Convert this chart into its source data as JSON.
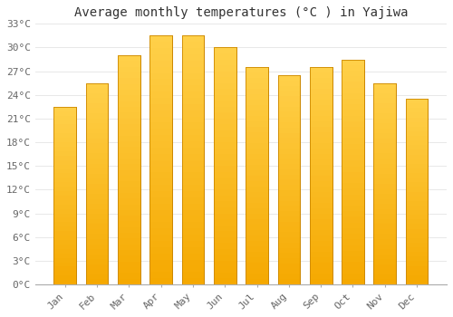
{
  "title": "Average monthly temperatures (°C ) in Yajiwa",
  "months": [
    "Jan",
    "Feb",
    "Mar",
    "Apr",
    "May",
    "Jun",
    "Jul",
    "Aug",
    "Sep",
    "Oct",
    "Nov",
    "Dec"
  ],
  "values": [
    22.5,
    25.5,
    29.0,
    31.5,
    31.5,
    30.0,
    27.5,
    26.5,
    27.5,
    28.5,
    25.5,
    23.5
  ],
  "bar_color_top": "#FFD04A",
  "bar_color_bottom": "#F5A800",
  "bar_edge_color": "#CC8800",
  "background_color": "#FFFFFF",
  "grid_color": "#E8E8E8",
  "ylim": [
    0,
    33
  ],
  "yticks": [
    0,
    3,
    6,
    9,
    12,
    15,
    18,
    21,
    24,
    27,
    30,
    33
  ],
  "ytick_labels": [
    "0°C",
    "3°C",
    "6°C",
    "9°C",
    "12°C",
    "15°C",
    "18°C",
    "21°C",
    "24°C",
    "27°C",
    "30°C",
    "33°C"
  ],
  "title_fontsize": 10,
  "tick_fontsize": 8,
  "font_family": "monospace",
  "bar_width": 0.7,
  "figsize": [
    5.0,
    3.5
  ],
  "dpi": 100
}
